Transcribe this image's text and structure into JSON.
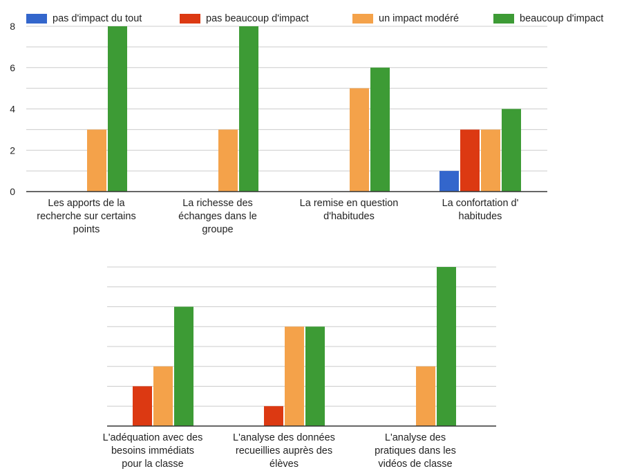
{
  "legend": {
    "series_names": [
      "pas d'impact du tout",
      "pas beaucoup d'impact",
      "un impact modéré",
      "beaucoup d'impact"
    ]
  },
  "colors": {
    "series": [
      "#3366cc",
      "#dc3912",
      "#f4a24a",
      "#3d9b35"
    ],
    "gridline": "#cccccc",
    "axis": "#333333"
  },
  "chart_data": [
    {
      "type": "bar",
      "title": "",
      "xlabel": "",
      "ylabel": "",
      "ylim": [
        0,
        8
      ],
      "yticks": [
        0,
        2,
        4,
        6,
        8
      ],
      "grid": true,
      "legend_position": "top",
      "categories": [
        [
          "Les apports de la",
          "recherche sur certains",
          "points"
        ],
        [
          "La richesse des",
          "échanges dans le",
          "groupe"
        ],
        [
          "La remise en question",
          "d'habitudes"
        ],
        [
          "La confortation d'",
          "habitudes"
        ]
      ],
      "series": [
        {
          "name": "pas d'impact du tout",
          "values": [
            0,
            0,
            0,
            1
          ]
        },
        {
          "name": "pas beaucoup d'impact",
          "values": [
            0,
            0,
            0,
            3
          ]
        },
        {
          "name": "un impact modéré",
          "values": [
            3,
            3,
            5,
            3
          ]
        },
        {
          "name": "beaucoup d'impact",
          "values": [
            8,
            8,
            6,
            4
          ]
        }
      ]
    },
    {
      "type": "bar",
      "title": "",
      "xlabel": "",
      "ylabel": "",
      "ylim": [
        0,
        8
      ],
      "yticks": [],
      "grid": true,
      "categories": [
        [
          "L'adéquation avec des",
          "besoins immédiats",
          "pour la classe"
        ],
        [
          "L'analyse des données",
          "recueillies auprès des",
          "élèves"
        ],
        [
          "L'analyse des",
          "pratiques dans les",
          "vidéos de classe"
        ]
      ],
      "series": [
        {
          "name": "pas d'impact du tout",
          "values": [
            0,
            0,
            0
          ]
        },
        {
          "name": "pas beaucoup d'impact",
          "values": [
            2,
            1,
            0
          ]
        },
        {
          "name": "un impact modéré",
          "values": [
            3,
            5,
            3
          ]
        },
        {
          "name": "beaucoup d'impact",
          "values": [
            6,
            5,
            8
          ]
        }
      ]
    }
  ]
}
